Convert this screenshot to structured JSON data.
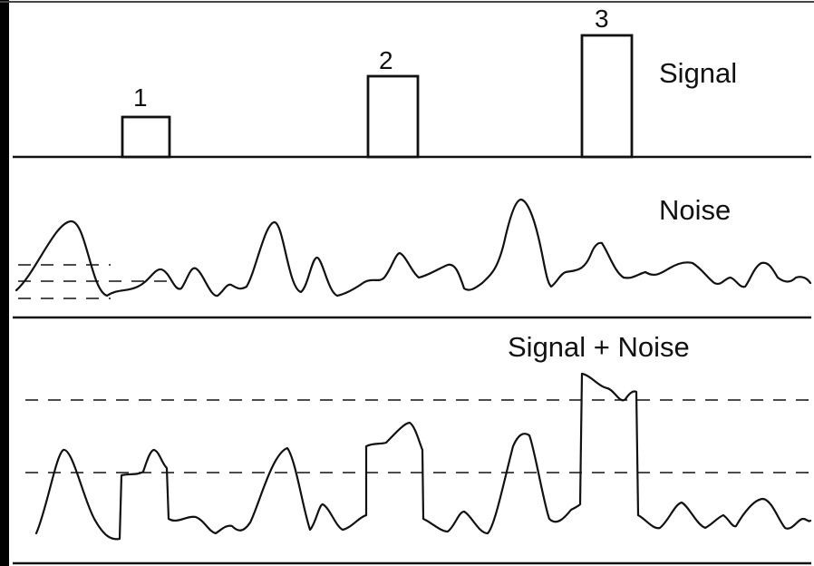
{
  "panels": {
    "signal": {
      "title": "Signal"
    },
    "noise": {
      "title": "Noise"
    },
    "combined": {
      "title": "Signal + Noise"
    }
  },
  "signal_peaks": [
    {
      "label": "1"
    },
    {
      "label": "2"
    },
    {
      "label": "3"
    }
  ],
  "colors": {
    "line": "#111111",
    "background": "#ffffff",
    "left_edge": "#000000"
  }
}
